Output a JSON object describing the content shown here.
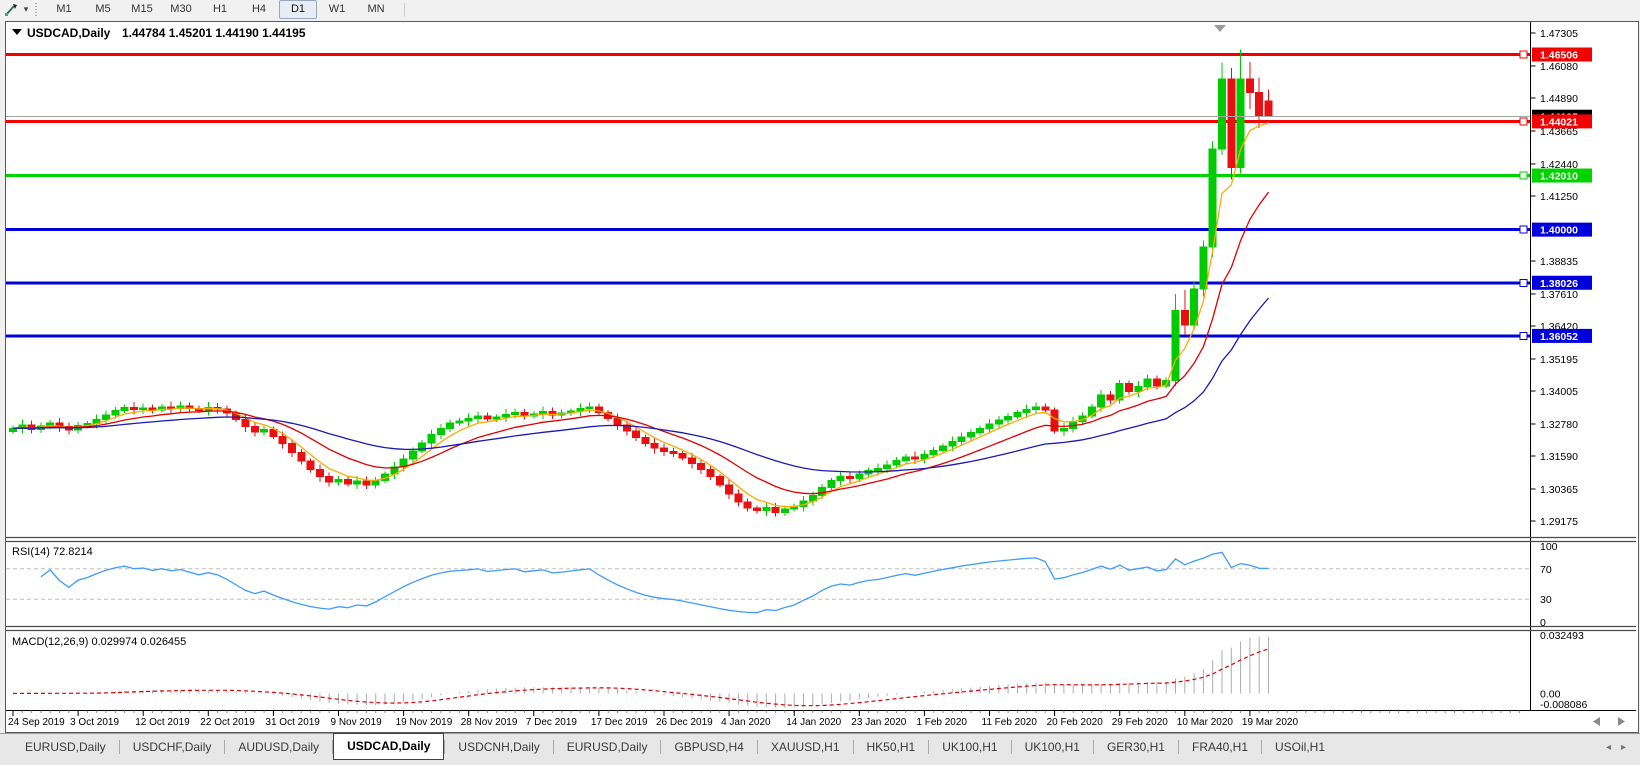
{
  "window": {
    "app_hint": "trading-terminal-chart"
  },
  "icons": {
    "dropdown": "▼",
    "caret": "▾",
    "scroll_left": "◄",
    "scroll_right": "►",
    "tab_left": "◂",
    "tab_right": "▸"
  },
  "toolbar": {
    "timeframes": [
      "M1",
      "M5",
      "M15",
      "M30",
      "H1",
      "H4",
      "D1",
      "W1",
      "MN"
    ],
    "active": "D1"
  },
  "chart": {
    "title": {
      "symbol": "USDCAD,Daily",
      "ohlc": "1.44784 1.45201 1.44190 1.44195"
    },
    "price_axis": {
      "ticks": [
        "1.47305",
        "1.46080",
        "1.44890",
        "1.43665",
        "1.42440",
        "1.41250",
        "1.38835",
        "1.37610",
        "1.36420",
        "1.35195",
        "1.34005",
        "1.32780",
        "1.31590",
        "1.30365",
        "1.29175"
      ],
      "badges": [
        {
          "value": "1.46506",
          "color": "#F40000"
        },
        {
          "value": "1.44021",
          "color": "#F40000"
        },
        {
          "value": "1.42010",
          "color": "#00D400"
        },
        {
          "value": "1.40000",
          "color": "#0000DE"
        },
        {
          "value": "1.38026",
          "color": "#0000DE"
        },
        {
          "value": "1.36052",
          "color": "#0000DE"
        }
      ],
      "current": {
        "value": "1.44195",
        "color": "#000000"
      }
    }
  },
  "rsi": {
    "label": "RSI(14) 72.8214",
    "period": 14,
    "value": "72.8214",
    "levels": [
      "100",
      "70",
      "30",
      "0"
    ],
    "overbought": 70,
    "oversold": 30
  },
  "macd": {
    "label": "MACD(12,26,9) 0.029974 0.026455",
    "macd_value": "0.029974",
    "signal_value": "0.026455",
    "axis_labels": [
      "0.032493",
      "0.00",
      "-0.008086"
    ],
    "max": 0.032493,
    "min": -0.008086
  },
  "date_axis": [
    "24 Sep 2019",
    "3 Oct 2019",
    "12 Oct 2019",
    "22 Oct 2019",
    "31 Oct 2019",
    "9 Nov 2019",
    "19 Nov 2019",
    "28 Nov 2019",
    "7 Dec 2019",
    "17 Dec 2019",
    "26 Dec 2019",
    "4 Jan 2020",
    "14 Jan 2020",
    "23 Jan 2020",
    "1 Feb 2020",
    "11 Feb 2020",
    "20 Feb 2020",
    "29 Feb 2020",
    "10 Mar 2020",
    "19 Mar 2020"
  ],
  "tabs": {
    "items": [
      "EURUSD,Daily",
      "USDCHF,Daily",
      "AUDUSD,Daily",
      "USDCAD,Daily",
      "USDCNH,Daily",
      "EURUSD,Daily",
      "GBPUSD,H4",
      "XAUUSD,H1",
      "HK50,H1",
      "UK100,H1",
      "UK100,H1",
      "GER30,H1",
      "FRA40,H1",
      "USOil,H1"
    ],
    "active_index": 3
  },
  "colors": {
    "bull": "#00CB00",
    "bear": "#E81010",
    "ma_fast": "#FFA800",
    "ma_mid": "#E00000",
    "ma_slow": "#1A1AB4",
    "hline_red": "#F40000",
    "hline_green": "#00D400",
    "hline_blue": "#0000DE",
    "current_line": "#A6A6A6",
    "rsi_line": "#3F9BFF",
    "rsi_level": "#BFBFBF",
    "macd_hist": "#ABABAB",
    "macd_signal": "#E00000",
    "badge_text": "#FFFFFF",
    "current_badge": "#000000"
  },
  "chart_data": {
    "type": "candlestick",
    "symbol": "USDCAD",
    "timeframe": "Daily",
    "last_bar_ohlc": {
      "open": 1.44784,
      "high": 1.45201,
      "low": 1.4419,
      "close": 1.44195
    },
    "price_range_shown": [
      1.29175,
      1.47305
    ],
    "bar_count": 136,
    "first_open": 1.325,
    "closes": [
      1.3262,
      1.3275,
      1.3258,
      1.327,
      1.3282,
      1.3268,
      1.3255,
      1.3272,
      1.328,
      1.3295,
      1.3312,
      1.3328,
      1.334,
      1.3332,
      1.3338,
      1.333,
      1.3342,
      1.3335,
      1.3345,
      1.3336,
      1.3328,
      1.334,
      1.3333,
      1.3318,
      1.3295,
      1.3268,
      1.3248,
      1.3258,
      1.3232,
      1.3205,
      1.3172,
      1.314,
      1.3108,
      1.3082,
      1.3062,
      1.3072,
      1.3055,
      1.3066,
      1.3052,
      1.3068,
      1.3092,
      1.3118,
      1.3148,
      1.3178,
      1.3208,
      1.3238,
      1.3262,
      1.3282,
      1.329,
      1.3298,
      1.3308,
      1.3296,
      1.3304,
      1.3314,
      1.332,
      1.3308,
      1.3316,
      1.3324,
      1.3312,
      1.3318,
      1.3326,
      1.3335,
      1.3342,
      1.332,
      1.3298,
      1.3275,
      1.3252,
      1.3228,
      1.3205,
      1.3188,
      1.3175,
      1.3168,
      1.3152,
      1.3132,
      1.3108,
      1.3082,
      1.3052,
      1.3018,
      1.2988,
      1.2965,
      1.2956,
      1.2968,
      1.295,
      1.2962,
      1.2972,
      1.2992,
      1.3012,
      1.3042,
      1.3068,
      1.3082,
      1.3075,
      1.3092,
      1.3106,
      1.3112,
      1.3126,
      1.3142,
      1.3156,
      1.3148,
      1.3164,
      1.318,
      1.3196,
      1.3212,
      1.323,
      1.3246,
      1.3262,
      1.3278,
      1.3292,
      1.3306,
      1.332,
      1.3332,
      1.3342,
      1.333,
      1.3252,
      1.3262,
      1.3288,
      1.3308,
      1.3342,
      1.3385,
      1.3368,
      1.3429,
      1.3398,
      1.3418,
      1.3445,
      1.342,
      1.344,
      1.37,
      1.3645,
      1.378,
      1.3935,
      1.43,
      1.456,
      1.423,
      1.456,
      1.451,
      1.442,
      1.44195
    ],
    "overrides": {
      "125": [
        1.344,
        1.376,
        1.342,
        1.37
      ],
      "126": [
        1.37,
        1.3775,
        1.3608,
        1.3645
      ],
      "127": [
        1.3645,
        1.3805,
        1.3628,
        1.378
      ],
      "128": [
        1.378,
        1.396,
        1.3752,
        1.3935
      ],
      "129": [
        1.3935,
        1.433,
        1.3898,
        1.43
      ],
      "130": [
        1.43,
        1.462,
        1.4278,
        1.456
      ],
      "131": [
        1.456,
        1.46,
        1.4186,
        1.423
      ],
      "132": [
        1.423,
        1.4669,
        1.4208,
        1.456
      ],
      "133": [
        1.456,
        1.4622,
        1.4448,
        1.451
      ],
      "134": [
        1.451,
        1.4566,
        1.4378,
        1.442
      ],
      "135": [
        1.44784,
        1.45201,
        1.4419,
        1.44195
      ]
    },
    "wick_base": 0.001,
    "horizontal_lines": [
      {
        "price": 1.46506,
        "color": "#F40000",
        "width": 3
      },
      {
        "price": 1.44021,
        "color": "#F40000",
        "width": 3
      },
      {
        "price": 1.4201,
        "color": "#00D400",
        "width": 3
      },
      {
        "price": 1.4,
        "color": "#0000DE",
        "width": 3
      },
      {
        "price": 1.38026,
        "color": "#0000DE",
        "width": 3
      },
      {
        "price": 1.36052,
        "color": "#0000DE",
        "width": 3
      }
    ],
    "current_price_line": 1.44195,
    "indicators": {
      "moving_averages": [
        {
          "name": "fast",
          "type": "ema",
          "period": 5,
          "color": "#FFA800"
        },
        {
          "name": "mid",
          "type": "ema",
          "period": 13,
          "color": "#E00000"
        },
        {
          "name": "slow",
          "type": "ema",
          "period": 34,
          "color": "#1A1AB4"
        }
      ],
      "rsi": {
        "period": 14,
        "last_value": 72.8214,
        "range": [
          0,
          100
        ],
        "levels": [
          70,
          30
        ]
      },
      "macd": {
        "fast": 12,
        "slow": 26,
        "signal": 9,
        "last_macd": 0.029974,
        "last_signal": 0.026455,
        "scale": [
          -0.008086,
          0.032493
        ]
      }
    }
  }
}
